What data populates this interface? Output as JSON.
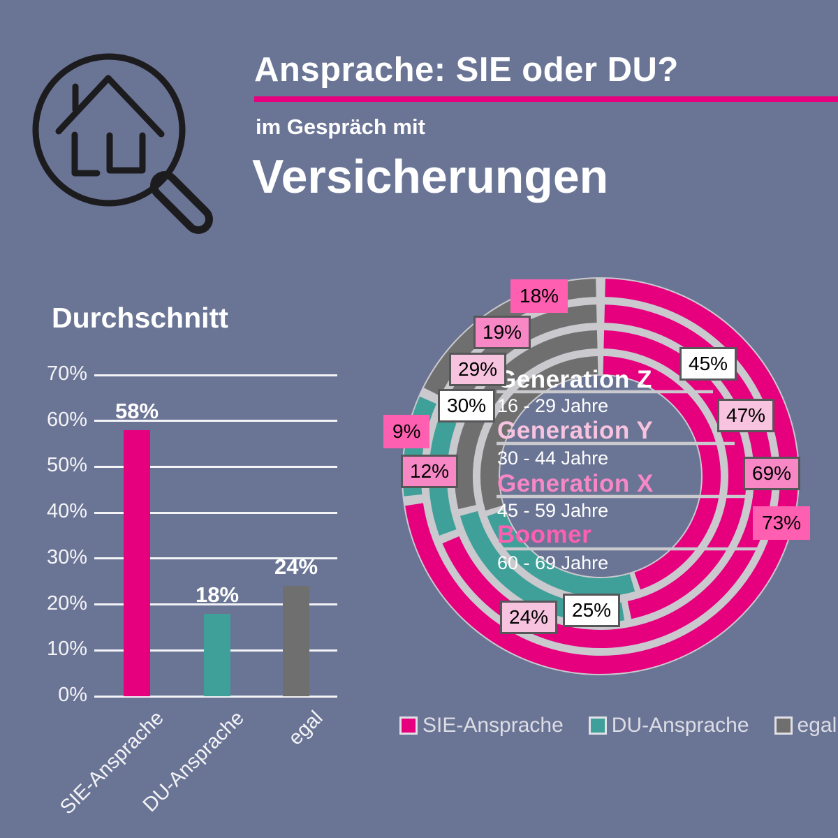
{
  "canvas": {
    "background": "#6A7495"
  },
  "header": {
    "logo": "house-magnifying-glass-icon",
    "title": "Ansprache: SIE oder DU?",
    "subtitle": "im Gespräch mit",
    "subject": "Versicherungen",
    "accent_color": "#E6007E"
  },
  "colors": {
    "sie": "#E6007E",
    "du": "#3FA099",
    "egal": "#6F6F6F",
    "track": "#C9C9CE",
    "text_light": "#FFFFFF"
  },
  "chart_data": [
    {
      "type": "bar",
      "title": "Durchschnitt",
      "categories": [
        "SIE-Ansprache",
        "DU-Ansprache",
        "egal"
      ],
      "values": [
        58,
        18,
        24
      ],
      "value_labels": [
        "58%",
        "18%",
        "24%"
      ],
      "bar_colors": [
        "#E6007E",
        "#3FA099",
        "#6F6F6F"
      ],
      "ylim": [
        0,
        70
      ],
      "yticks": [
        "0%",
        "10%",
        "20%",
        "30%",
        "40%",
        "50%",
        "60%",
        "70%"
      ],
      "grid": true,
      "legend_position": "none"
    },
    {
      "type": "donut-multi-ring",
      "segment_order": [
        "sie",
        "du",
        "egal"
      ],
      "start_angle_deg": 0,
      "direction": "clockwise",
      "legend_position": "bottom",
      "legend": [
        {
          "key": "sie",
          "label": "SIE-Ansprache",
          "color": "#E6007E"
        },
        {
          "key": "du",
          "label": "DU-Ansprache",
          "color": "#3FA099"
        },
        {
          "key": "egal",
          "label": "egal",
          "color": "#6F6F6F"
        }
      ],
      "rings_outer_to_inner": [
        {
          "name": "Boomer",
          "age": "60 - 69 Jahre",
          "label_color": "#FF5FB0",
          "bordered_labels": false,
          "sie": 73,
          "du": 9,
          "egal": 18
        },
        {
          "name": "Generation X",
          "age": "45 - 59 Jahre",
          "label_color": "#F788C5",
          "bordered_labels": true,
          "sie": 69,
          "du": 12,
          "egal": 19
        },
        {
          "name": "Generation Y",
          "age": "30 - 44 Jahre",
          "label_color": "#F7C3DF",
          "bordered_labels": true,
          "sie": 47,
          "du": 24,
          "egal": 29
        },
        {
          "name": "Generation Z",
          "age": "16 - 29 Jahre",
          "label_color": "#FFFFFF",
          "bordered_labels": true,
          "sie": 45,
          "du": 25,
          "egal": 30
        }
      ]
    }
  ]
}
